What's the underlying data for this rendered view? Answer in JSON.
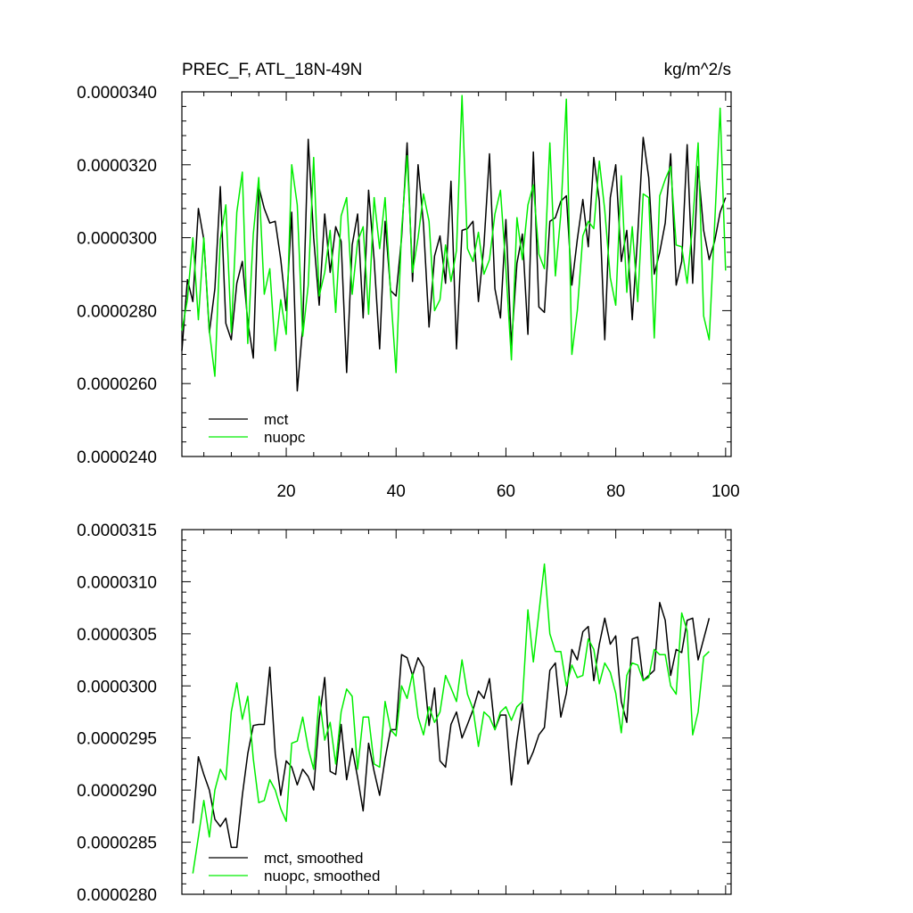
{
  "chart_data": [
    {
      "type": "line",
      "title": "PREC_F, ATL_18N-49N",
      "units": "kg/m^2/s",
      "xlim": [
        1,
        101
      ],
      "ylim": [
        2.4e-05,
        3.4e-05
      ],
      "x_tick_labels": [
        "20",
        "40",
        "60",
        "80",
        "100"
      ],
      "y_tick_labels": [
        "0.0000240",
        "0.0000260",
        "0.0000280",
        "0.0000300",
        "0.0000320",
        "0.0000340"
      ],
      "legend_position": "bottom-left",
      "series": [
        {
          "name": "mct",
          "color": "#000000",
          "x_start": 1,
          "values": [
            2.69e-05,
            2.885e-05,
            2.825e-05,
            3.08e-05,
            2.995e-05,
            2.74e-05,
            2.86e-05,
            3.14e-05,
            2.765e-05,
            2.72e-05,
            2.875e-05,
            2.935e-05,
            2.77e-05,
            2.67e-05,
            3.14e-05,
            3.08e-05,
            3.04e-05,
            3.045e-05,
            2.94e-05,
            2.8e-05,
            3.07e-05,
            2.58e-05,
            2.755e-05,
            3.27e-05,
            3e-05,
            2.815e-05,
            3.065e-05,
            2.905e-05,
            3.03e-05,
            2.99e-05,
            2.63e-05,
            2.98e-05,
            3.065e-05,
            2.78e-05,
            3.13e-05,
            2.94e-05,
            2.695e-05,
            3.045e-05,
            2.855e-05,
            2.84e-05,
            3e-05,
            3.26e-05,
            2.88e-05,
            3.2e-05,
            3.035e-05,
            2.755e-05,
            2.95e-05,
            3.005e-05,
            2.875e-05,
            3.155e-05,
            2.695e-05,
            3.02e-05,
            3.025e-05,
            3.045e-05,
            2.825e-05,
            2.98e-05,
            3.23e-05,
            2.86e-05,
            2.78e-05,
            3.05e-05,
            2.705e-05,
            2.93e-05,
            3.01e-05,
            2.735e-05,
            3.235e-05,
            2.81e-05,
            2.795e-05,
            3.045e-05,
            3.055e-05,
            3.1e-05,
            3.115e-05,
            2.87e-05,
            2.995e-05,
            3.105e-05,
            2.975e-05,
            3.22e-05,
            3.1e-05,
            2.72e-05,
            3.11e-05,
            3.2e-05,
            2.935e-05,
            3.02e-05,
            2.775e-05,
            3.01e-05,
            3.275e-05,
            3.165e-05,
            2.9e-05,
            2.96e-05,
            3.04e-05,
            3.23e-05,
            2.87e-05,
            2.935e-05,
            3.255e-05,
            2.875e-05,
            3.195e-05,
            3.02e-05,
            2.94e-05,
            2.99e-05,
            3.07e-05,
            3.11e-05
          ]
        },
        {
          "name": "nuopc",
          "color": "#00ee00",
          "x_start": 1,
          "values": [
            2.745e-05,
            2.83e-05,
            3e-05,
            2.775e-05,
            3e-05,
            2.745e-05,
            2.62e-05,
            2.995e-05,
            3.09e-05,
            2.74e-05,
            3.07e-05,
            3.18e-05,
            2.71e-05,
            3.01e-05,
            3.165e-05,
            2.845e-05,
            2.915e-05,
            2.69e-05,
            2.83e-05,
            2.735e-05,
            3.2e-05,
            3.09e-05,
            2.73e-05,
            2.87e-05,
            3.22e-05,
            2.84e-05,
            2.905e-05,
            3.02e-05,
            2.795e-05,
            3.06e-05,
            3.11e-05,
            2.845e-05,
            2.99e-05,
            3.03e-05,
            2.79e-05,
            3.11e-05,
            2.97e-05,
            3.11e-05,
            2.85e-05,
            2.63e-05,
            3.02e-05,
            3.225e-05,
            2.905e-05,
            3e-05,
            3.12e-05,
            3.045e-05,
            2.8e-05,
            2.83e-05,
            2.98e-05,
            2.88e-05,
            2.965e-05,
            3.39e-05,
            2.97e-05,
            2.935e-05,
            3.015e-05,
            2.9e-05,
            2.94e-05,
            3.065e-05,
            3.13e-05,
            2.915e-05,
            2.665e-05,
            3.055e-05,
            2.94e-05,
            3.09e-05,
            3.145e-05,
            2.955e-05,
            2.915e-05,
            3.26e-05,
            2.895e-05,
            3.065e-05,
            3.38e-05,
            2.68e-05,
            2.8e-05,
            3.005e-05,
            3.045e-05,
            3.025e-05,
            3.21e-05,
            3.075e-05,
            2.89e-05,
            2.815e-05,
            3.17e-05,
            2.85e-05,
            3.03e-05,
            2.825e-05,
            3.12e-05,
            3.11e-05,
            2.725e-05,
            3.115e-05,
            3.16e-05,
            3.195e-05,
            2.98e-05,
            2.975e-05,
            2.875e-05,
            3.04e-05,
            3.26e-05,
            2.785e-05,
            2.72e-05,
            3.035e-05,
            3.355e-05,
            2.91e-05
          ]
        }
      ]
    },
    {
      "type": "line",
      "xlim": [
        1,
        101
      ],
      "ylim": [
        2.8e-05,
        3.15e-05
      ],
      "y_tick_labels": [
        "0.0000280",
        "0.0000285",
        "0.0000290",
        "0.0000295",
        "0.0000300",
        "0.0000305",
        "0.0000310",
        "0.0000315"
      ],
      "legend_position": "bottom-left",
      "series": [
        {
          "name": "mct, smoothed",
          "color": "#000000",
          "x_start": 3,
          "values": [
            2.868e-05,
            2.932e-05,
            2.915e-05,
            2.9e-05,
            2.872e-05,
            2.865e-05,
            2.873e-05,
            2.845e-05,
            2.845e-05,
            2.895e-05,
            2.935e-05,
            2.962e-05,
            2.963e-05,
            2.963e-05,
            3.018e-05,
            2.935e-05,
            2.895e-05,
            2.928e-05,
            2.922e-05,
            2.905e-05,
            2.92e-05,
            2.913e-05,
            2.9e-05,
            2.968e-05,
            3.008e-05,
            2.918e-05,
            2.915e-05,
            2.963e-05,
            2.91e-05,
            2.94e-05,
            2.912e-05,
            2.88e-05,
            2.945e-05,
            2.918e-05,
            2.895e-05,
            2.93e-05,
            2.958e-05,
            2.958e-05,
            3.03e-05,
            3.027e-05,
            3.01e-05,
            3.027e-05,
            3.018e-05,
            2.962e-05,
            2.998e-05,
            2.928e-05,
            2.922e-05,
            2.963e-05,
            2.975e-05,
            2.95e-05,
            2.963e-05,
            2.977e-05,
            2.995e-05,
            2.988e-05,
            3.007e-05,
            2.958e-05,
            2.972e-05,
            2.972e-05,
            2.905e-05,
            2.948e-05,
            2.983e-05,
            2.925e-05,
            2.937e-05,
            2.953e-05,
            2.96e-05,
            3.015e-05,
            3.022e-05,
            2.97e-05,
            2.993e-05,
            3.035e-05,
            3.025e-05,
            3.052e-05,
            3.057e-05,
            3.005e-05,
            3.04e-05,
            3.065e-05,
            3.04e-05,
            3.048e-05,
            2.985e-05,
            2.965e-05,
            3.045e-05,
            3.047e-05,
            3.005e-05,
            3.01e-05,
            3.015e-05,
            3.08e-05,
            3.063e-05,
            3.01e-05,
            3.035e-05,
            3.032e-05,
            3.063e-05,
            3.065e-05,
            3.025e-05,
            3.045e-05,
            3.065e-05
          ]
        },
        {
          "name": "nuopc, smoothed",
          "color": "#00ee00",
          "x_start": 3,
          "values": [
            2.82e-05,
            2.855e-05,
            2.89e-05,
            2.855e-05,
            2.9e-05,
            2.92e-05,
            2.91e-05,
            2.975e-05,
            3.003e-05,
            2.968e-05,
            2.99e-05,
            2.93e-05,
            2.888e-05,
            2.89e-05,
            2.91e-05,
            2.9e-05,
            2.882e-05,
            2.87e-05,
            2.945e-05,
            2.947e-05,
            2.97e-05,
            2.94e-05,
            2.92e-05,
            2.99e-05,
            2.948e-05,
            2.965e-05,
            2.925e-05,
            2.975e-05,
            2.997e-05,
            2.99e-05,
            2.92e-05,
            2.97e-05,
            2.97e-05,
            2.925e-05,
            2.922e-05,
            2.985e-05,
            2.958e-05,
            2.952e-05,
            3e-05,
            2.988e-05,
            3.012e-05,
            2.97e-05,
            2.953e-05,
            2.98e-05,
            2.965e-05,
            2.975e-05,
            3.01e-05,
            2.998e-05,
            2.985e-05,
            3.025e-05,
            2.992e-05,
            2.978e-05,
            2.942e-05,
            2.975e-05,
            2.97e-05,
            2.958e-05,
            2.975e-05,
            2.98e-05,
            2.967e-05,
            2.98e-05,
            2.985e-05,
            3.073e-05,
            3.023e-05,
            3.07e-05,
            3.117e-05,
            3.05e-05,
            3.033e-05,
            3.033e-05,
            3e-05,
            3.02e-05,
            3.008e-05,
            3.01e-05,
            3.045e-05,
            3.035e-05,
            3.002e-05,
            3.022e-05,
            3.013e-05,
            2.993e-05,
            2.955e-05,
            3.01e-05,
            3.022e-05,
            3.02e-05,
            3.005e-05,
            3.008e-05,
            3.035e-05,
            3.03e-05,
            3.03e-05,
            3e-05,
            2.992e-05,
            3.07e-05,
            3.053e-05,
            2.953e-05,
            2.975e-05,
            3.028e-05,
            3.033e-05
          ]
        }
      ]
    }
  ]
}
